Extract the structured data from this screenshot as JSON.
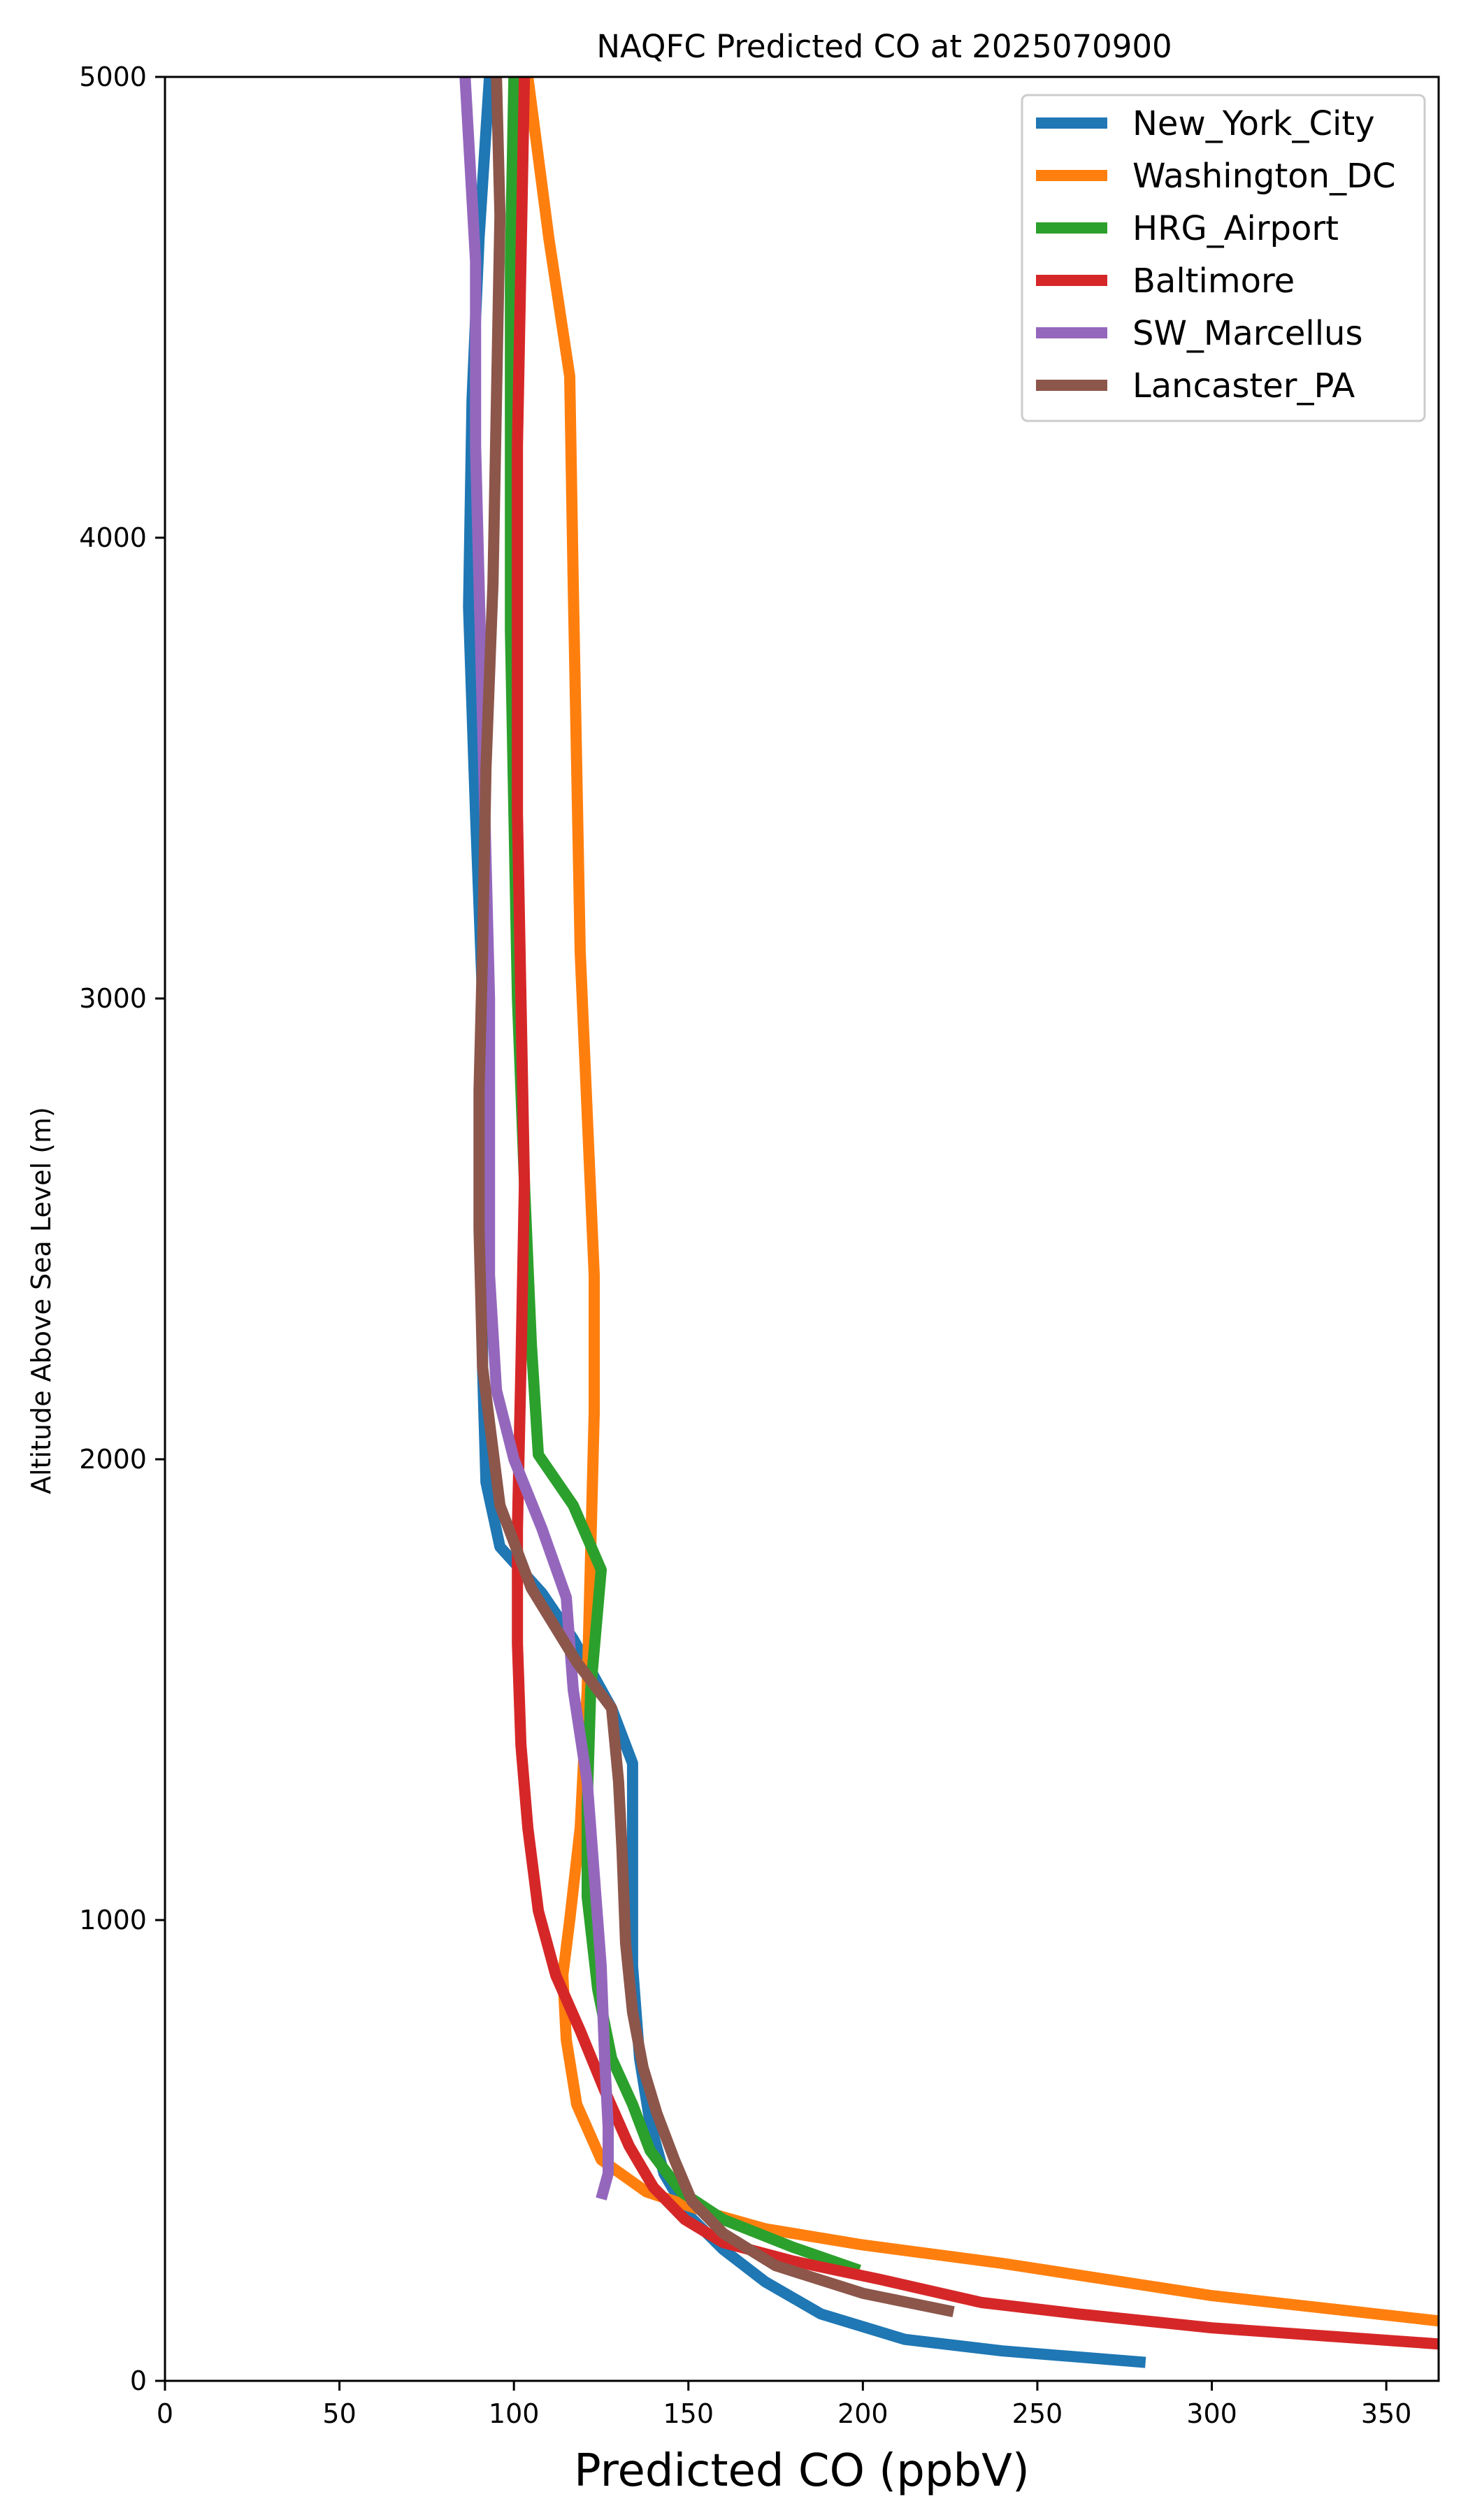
{
  "chart_data": {
    "type": "line",
    "title": "NAQFC Predicted CO at 2025070900",
    "xlabel": "Predicted CO (ppbV)",
    "ylabel": "Altitude Above Sea Level (m)",
    "xlim": [
      0,
      365
    ],
    "ylim": [
      0,
      5000
    ],
    "x_ticks": [
      0,
      50,
      100,
      150,
      200,
      250,
      300,
      350
    ],
    "y_ticks": [
      0,
      1000,
      2000,
      3000,
      4000,
      5000
    ],
    "grid": false,
    "legend_position": "top-right",
    "series": [
      {
        "name": "New_York_City",
        "color": "#1f77b4",
        "points": [
          [
            281,
            40
          ],
          [
            240,
            65
          ],
          [
            212,
            90
          ],
          [
            188,
            145
          ],
          [
            172,
            215
          ],
          [
            160,
            285
          ],
          [
            150,
            360
          ],
          [
            143,
            450
          ],
          [
            139,
            560
          ],
          [
            136,
            700
          ],
          [
            134,
            900
          ],
          [
            134,
            1100
          ],
          [
            134,
            1340
          ],
          [
            128,
            1460
          ],
          [
            117,
            1610
          ],
          [
            108,
            1710
          ],
          [
            96,
            1810
          ],
          [
            92,
            1950
          ],
          [
            91,
            2200
          ],
          [
            91,
            2600
          ],
          [
            91,
            3000
          ],
          [
            89,
            3400
          ],
          [
            87,
            3850
          ],
          [
            88,
            4300
          ],
          [
            90,
            4650
          ],
          [
            93,
            5000
          ]
        ]
      },
      {
        "name": "Washington_DC",
        "color": "#ff7f0e",
        "points": [
          [
            365,
            130
          ],
          [
            300,
            185
          ],
          [
            240,
            255
          ],
          [
            200,
            295
          ],
          [
            172,
            330
          ],
          [
            158,
            360
          ],
          [
            150,
            380
          ],
          [
            138,
            410
          ],
          [
            125,
            480
          ],
          [
            118,
            600
          ],
          [
            115,
            740
          ],
          [
            114,
            880
          ],
          [
            116,
            1000
          ],
          [
            119,
            1200
          ],
          [
            121,
            1500
          ],
          [
            122,
            1800
          ],
          [
            123,
            2100
          ],
          [
            123,
            2400
          ],
          [
            121,
            2750
          ],
          [
            119,
            3100
          ],
          [
            118,
            3500
          ],
          [
            117,
            3900
          ],
          [
            116,
            4350
          ],
          [
            110,
            4650
          ],
          [
            104,
            5000
          ]
        ]
      },
      {
        "name": "HRG_Airport",
        "color": "#2ca02c",
        "points": [
          [
            199,
            240
          ],
          [
            180,
            290
          ],
          [
            160,
            350
          ],
          [
            148,
            410
          ],
          [
            139,
            500
          ],
          [
            134,
            600
          ],
          [
            128,
            700
          ],
          [
            124,
            850
          ],
          [
            121,
            1050
          ],
          [
            121,
            1250
          ],
          [
            122,
            1500
          ],
          [
            125,
            1760
          ],
          [
            117,
            1900
          ],
          [
            107,
            2010
          ],
          [
            105,
            2250
          ],
          [
            103,
            2600
          ],
          [
            101,
            3000
          ],
          [
            100,
            3400
          ],
          [
            99,
            3800
          ],
          [
            99,
            4200
          ],
          [
            99,
            4600
          ],
          [
            100,
            5000
          ]
        ]
      },
      {
        "name": "Baltimore",
        "color": "#d62728",
        "points": [
          [
            365,
            80
          ],
          [
            300,
            115
          ],
          [
            262,
            145
          ],
          [
            234,
            170
          ],
          [
            205,
            220
          ],
          [
            180,
            260
          ],
          [
            160,
            300
          ],
          [
            149,
            350
          ],
          [
            140,
            420
          ],
          [
            133,
            510
          ],
          [
            126,
            630
          ],
          [
            119,
            760
          ],
          [
            112,
            880
          ],
          [
            107,
            1020
          ],
          [
            104,
            1200
          ],
          [
            102,
            1380
          ],
          [
            101,
            1600
          ],
          [
            101,
            1850
          ],
          [
            102,
            2200
          ],
          [
            103,
            2600
          ],
          [
            102,
            3000
          ],
          [
            101,
            3400
          ],
          [
            101,
            3800
          ],
          [
            101,
            4200
          ],
          [
            102,
            4600
          ],
          [
            103,
            5000
          ]
        ]
      },
      {
        "name": "SW_Marcellus",
        "color": "#9467bd",
        "points": [
          [
            125,
            395
          ],
          [
            127,
            450
          ],
          [
            127,
            550
          ],
          [
            126,
            700
          ],
          [
            125,
            900
          ],
          [
            123,
            1100
          ],
          [
            121,
            1300
          ],
          [
            117,
            1500
          ],
          [
            115,
            1700
          ],
          [
            108,
            1850
          ],
          [
            100,
            2000
          ],
          [
            95,
            2150
          ],
          [
            93,
            2400
          ],
          [
            93,
            2700
          ],
          [
            93,
            3000
          ],
          [
            92,
            3300
          ],
          [
            91,
            3600
          ],
          [
            90,
            3900
          ],
          [
            89,
            4200
          ],
          [
            89,
            4600
          ],
          [
            86,
            5000
          ]
        ]
      },
      {
        "name": "Lancaster_PA",
        "color": "#8c564b",
        "points": [
          [
            226,
            150
          ],
          [
            200,
            190
          ],
          [
            175,
            250
          ],
          [
            160,
            320
          ],
          [
            151,
            390
          ],
          [
            146,
            480
          ],
          [
            141,
            580
          ],
          [
            137,
            680
          ],
          [
            134,
            800
          ],
          [
            132,
            950
          ],
          [
            131,
            1150
          ],
          [
            130,
            1300
          ],
          [
            128,
            1460
          ],
          [
            118,
            1560
          ],
          [
            105,
            1720
          ],
          [
            96,
            1900
          ],
          [
            91,
            2200
          ],
          [
            90,
            2500
          ],
          [
            90,
            2800
          ],
          [
            91,
            3100
          ],
          [
            92,
            3500
          ],
          [
            94,
            3900
          ],
          [
            95,
            4300
          ],
          [
            96,
            4700
          ],
          [
            95,
            5000
          ]
        ]
      }
    ]
  }
}
